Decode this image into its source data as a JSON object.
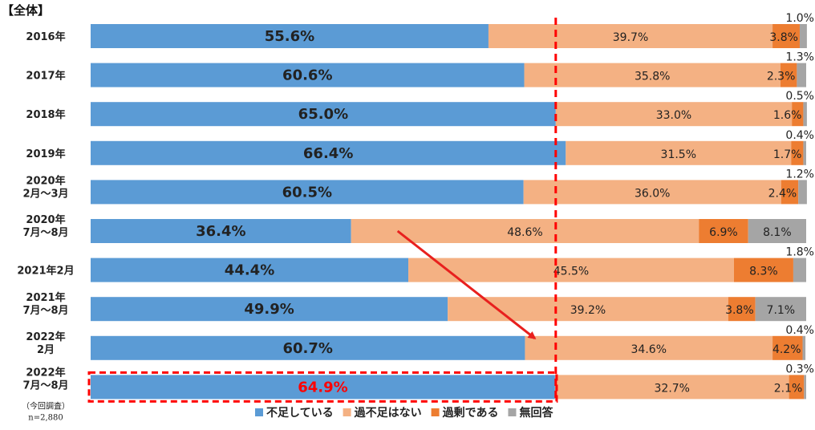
{
  "colors": {
    "shortage": "#5b9bd5",
    "balanced": "#f4b183",
    "excess": "#ed7d31",
    "no_answer": "#a5a5a5",
    "highlight": "#ff0000",
    "arrow": "#e8201e"
  },
  "chart_data": {
    "type": "bar",
    "orientation": "horizontal-stacked-100",
    "title": "【全体】",
    "categories": [
      [
        "2016年"
      ],
      [
        "2017年"
      ],
      [
        "2018年"
      ],
      [
        "2019年"
      ],
      [
        "2020年",
        "2月～3月"
      ],
      [
        "2020年",
        "7月～8月"
      ],
      [
        "2021年2月"
      ],
      [
        "2021年",
        "7月～8月"
      ],
      [
        "2022年",
        "2月"
      ],
      [
        "2022年",
        "7月～8月"
      ]
    ],
    "category_notes": [
      "",
      "",
      "",
      "",
      "",
      "",
      "",
      "",
      "",
      "（今回調査）"
    ],
    "sample_note": "n=2,880",
    "series": [
      {
        "name": "不足している",
        "values": [
          55.6,
          60.6,
          65.0,
          66.4,
          60.5,
          36.4,
          44.4,
          49.9,
          60.7,
          64.9
        ],
        "labels": [
          "55.6%",
          "60.6%",
          "65.0%",
          "66.4%",
          "60.5%",
          "36.4%",
          "44.4%",
          "49.9%",
          "60.7%",
          "64.9%"
        ]
      },
      {
        "name": "過不足はない",
        "values": [
          39.7,
          35.8,
          33.0,
          31.5,
          36.0,
          48.6,
          45.5,
          39.2,
          34.6,
          32.7
        ],
        "labels": [
          "39.7%",
          "35.8%",
          "33.0%",
          "31.5%",
          "36.0%",
          "48.6%",
          "45.5%",
          "39.2%",
          "34.6%",
          "32.7%"
        ]
      },
      {
        "name": "過剰である",
        "values": [
          3.8,
          2.3,
          1.6,
          1.7,
          2.4,
          6.9,
          8.3,
          3.8,
          4.2,
          2.1
        ],
        "labels": [
          "3.8%",
          "2.3%",
          "1.6%",
          "1.7%",
          "2.4%",
          "6.9%",
          "8.3%",
          "3.8%",
          "4.2%",
          "2.1%"
        ]
      },
      {
        "name": "無回答",
        "values": [
          1.0,
          1.3,
          0.5,
          0.4,
          1.2,
          8.1,
          1.8,
          7.1,
          0.4,
          0.3
        ],
        "labels": [
          "1.0%",
          "1.3%",
          "0.5%",
          "0.4%",
          "1.2%",
          "8.1%",
          "1.8%",
          "7.1%",
          "0.4%",
          "0.3%"
        ]
      }
    ],
    "xlim": [
      0,
      100
    ],
    "legend": "bottom",
    "grid": false,
    "reference_line": 65.0,
    "highlighted_category_index": 9,
    "trend_arrow": {
      "from_category_index": 5,
      "to_category_index": 8
    }
  }
}
